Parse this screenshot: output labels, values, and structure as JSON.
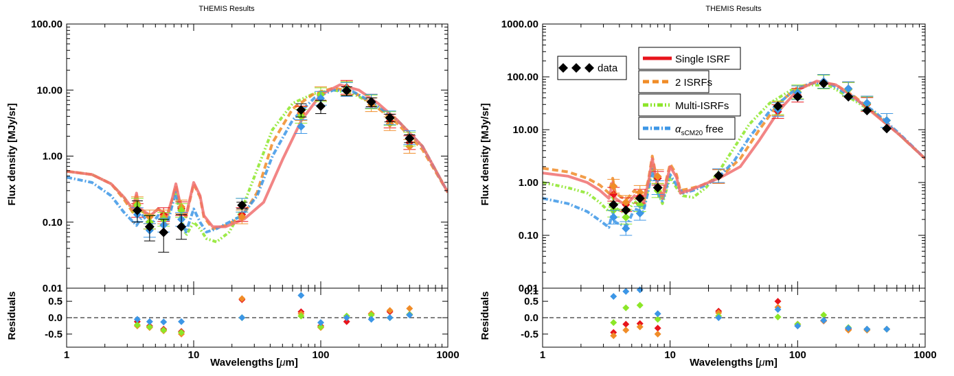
{
  "panels": [
    {
      "title": "THEMIS Results",
      "ylabel": "Flux density [MJy/sr]",
      "xlabel_prefix": "Wavelengths [",
      "xlabel_mu": "μ",
      "xlabel_suffix": "m]",
      "residual_label": "Residuals",
      "main_y_ticks": [
        "0.01",
        "0.10",
        "1.00",
        "10.00",
        "100.00"
      ],
      "x_ticks": [
        "1",
        "10",
        "100",
        "1000"
      ],
      "res_ticks": [
        "0.5",
        "0.0",
        "-0.5"
      ]
    },
    {
      "title": "THEMIS Results",
      "ylabel": "Flux density [MJy/sr]",
      "xlabel_prefix": "Wavelengths [",
      "xlabel_mu": "μ",
      "xlabel_suffix": "m]",
      "residual_label": "Residuals",
      "main_y_ticks": [
        "0.01",
        "0.10",
        "1.00",
        "10.00",
        "100.00",
        "1000.00"
      ],
      "x_ticks": [
        "1",
        "10",
        "100",
        "1000"
      ],
      "res_ticks": [
        "0.1",
        "0.5",
        "0.0",
        "-0.5"
      ],
      "legend": {
        "data": "data",
        "single": "Single ISRF",
        "two": "2 ISRFs",
        "multi": "Multi-ISRFs",
        "alpha_prefix": "α",
        "alpha_sub": "sCM20",
        "alpha_suffix": " free"
      }
    }
  ],
  "colors": {
    "single": "#e8141c",
    "single_line": "#f07070",
    "two": "#f08c28",
    "multi": "#8ce628",
    "alpha": "#3c96e6",
    "data": "#000000"
  },
  "chart_data": [
    {
      "type": "scatter",
      "title": "THEMIS Results",
      "xlabel": "Wavelengths [μm]",
      "ylabel": "Flux density [MJy/sr]",
      "xscale": "log",
      "yscale": "log",
      "xlim": [
        1,
        1000
      ],
      "ylim": [
        0.01,
        100
      ],
      "residual_ylim": [
        -0.9,
        0.9
      ],
      "data": {
        "name": "data",
        "x": [
          3.6,
          4.5,
          5.8,
          8.0,
          24,
          70,
          100,
          160,
          250,
          350,
          500
        ],
        "y": [
          0.15,
          0.085,
          0.07,
          0.085,
          0.18,
          5.0,
          5.7,
          9.8,
          6.6,
          3.8,
          1.85
        ],
        "err_lo": [
          0.1,
          0.052,
          0.035,
          0.055,
          0.16,
          3.9,
          4.4,
          8.2,
          5.6,
          3.3,
          1.6
        ],
        "err_hi": [
          0.21,
          0.125,
          0.11,
          0.13,
          0.2,
          6.2,
          7.0,
          11.2,
          7.6,
          4.3,
          2.1
        ]
      },
      "points": [
        {
          "name": "Single ISRF",
          "x": [
            3.6,
            4.5,
            5.8,
            8.0,
            24,
            70,
            100,
            160,
            250,
            350,
            500
          ],
          "y": [
            0.15,
            0.1,
            0.13,
            0.16,
            0.13,
            4.5,
            8.5,
            11.0,
            6.8,
            3.4,
            1.6
          ]
        },
        {
          "name": "2 ISRFs",
          "x": [
            3.6,
            4.5,
            5.8,
            8.0,
            24,
            70,
            100,
            160,
            250,
            350,
            500
          ],
          "y": [
            0.19,
            0.12,
            0.12,
            0.17,
            0.12,
            4.4,
            8.8,
            10.6,
            6.0,
            3.1,
            1.4
          ]
        },
        {
          "name": "Multi-ISRFs",
          "x": [
            3.6,
            4.5,
            5.8,
            8.0,
            24,
            70,
            100,
            160,
            250,
            350,
            500
          ],
          "y": [
            0.18,
            0.1,
            0.11,
            0.15,
            0.18,
            4.0,
            8.5,
            10.5,
            6.6,
            3.7,
            1.8
          ]
        },
        {
          "name": "αsCM20 free",
          "x": [
            3.6,
            4.5,
            5.8,
            8.0,
            24,
            70,
            100,
            160,
            250,
            350,
            500
          ],
          "y": [
            0.13,
            0.075,
            0.09,
            0.11,
            0.18,
            2.8,
            7.5,
            10.2,
            6.8,
            3.8,
            1.9
          ]
        }
      ],
      "residuals": [
        {
          "name": "Single ISRF",
          "x": [
            3.6,
            4.5,
            5.8,
            8.0,
            24,
            70,
            100,
            160,
            250,
            350,
            500
          ],
          "y": [
            -0.12,
            -0.25,
            -0.35,
            -0.42,
            0.55,
            0.18,
            -0.25,
            -0.12,
            0.12,
            0.18,
            0.1
          ]
        },
        {
          "name": "2 ISRFs",
          "x": [
            3.6,
            4.5,
            5.8,
            8.0,
            24,
            70,
            100,
            160,
            250,
            350,
            500
          ],
          "y": [
            -0.25,
            -0.3,
            -0.4,
            -0.5,
            0.58,
            0.12,
            -0.3,
            0.0,
            0.12,
            0.22,
            0.28
          ]
        },
        {
          "name": "Multi-ISRFs",
          "x": [
            3.6,
            4.5,
            5.8,
            8.0,
            24,
            70,
            100,
            160,
            250,
            350,
            500
          ],
          "y": [
            -0.22,
            -0.28,
            -0.38,
            -0.45,
            0.0,
            0.05,
            -0.28,
            0.05,
            0.08,
            0.0,
            0.1
          ]
        },
        {
          "name": "αsCM20 free",
          "x": [
            3.6,
            4.5,
            5.8,
            8.0,
            24,
            70,
            100,
            160,
            250,
            350,
            500
          ],
          "y": [
            -0.05,
            -0.12,
            -0.13,
            -0.12,
            0.0,
            0.68,
            -0.15,
            0.0,
            -0.05,
            0.0,
            0.08
          ]
        }
      ]
    },
    {
      "type": "scatter",
      "title": "THEMIS Results",
      "xlabel": "Wavelengths [μm]",
      "ylabel": "Flux density [MJy/sr]",
      "xscale": "log",
      "yscale": "log",
      "xlim": [
        1,
        1000
      ],
      "ylim": [
        0.01,
        1000
      ],
      "residual_ylim": [
        -0.9,
        0.9
      ],
      "legend_position": "top-left",
      "data": {
        "name": "data",
        "x": [
          3.6,
          4.5,
          5.8,
          8.0,
          24,
          70,
          100,
          160,
          250,
          350,
          500
        ],
        "y": [
          0.38,
          0.3,
          0.5,
          0.8,
          1.35,
          28,
          42,
          75,
          42,
          23,
          10.5
        ]
      },
      "points": [
        {
          "name": "Single ISRF",
          "x": [
            3.6,
            4.5,
            5.8,
            8.0,
            24,
            70,
            100,
            160,
            250,
            350,
            500
          ],
          "y": [
            0.6,
            0.38,
            0.55,
            1.2,
            1.3,
            22,
            45,
            82,
            58,
            30,
            15
          ]
        },
        {
          "name": "2 ISRFs",
          "x": [
            3.6,
            4.5,
            5.8,
            8.0,
            24,
            70,
            100,
            160,
            250,
            350,
            500
          ],
          "y": [
            0.85,
            0.42,
            0.65,
            1.3,
            1.3,
            25,
            50,
            82,
            60,
            32,
            15
          ]
        },
        {
          "name": "Multi-ISRFs",
          "x": [
            3.6,
            4.5,
            5.8,
            8.0,
            24,
            70,
            100,
            160,
            250,
            350,
            500
          ],
          "y": [
            0.3,
            0.22,
            0.38,
            0.7,
            1.35,
            26,
            52,
            80,
            58,
            31,
            15
          ]
        },
        {
          "name": "αsCM20 free",
          "x": [
            3.6,
            4.5,
            5.8,
            8.0,
            24,
            70,
            100,
            160,
            250,
            350,
            500
          ],
          "y": [
            0.22,
            0.135,
            0.26,
            0.8,
            1.35,
            24,
            50,
            82,
            60,
            32,
            15
          ]
        }
      ],
      "residuals": [
        {
          "name": "Single ISRF",
          "x": [
            3.6,
            4.5,
            5.8,
            8.0,
            24,
            70,
            100,
            160,
            250,
            350,
            500
          ],
          "y": [
            -0.45,
            -0.2,
            -0.18,
            -0.32,
            0.2,
            0.5,
            -0.2,
            -0.1,
            -0.35,
            -0.35,
            -0.35
          ]
        },
        {
          "name": "2 ISRFs",
          "x": [
            3.6,
            4.5,
            5.8,
            8.0,
            24,
            70,
            100,
            160,
            250,
            350,
            500
          ],
          "y": [
            -0.55,
            -0.38,
            -0.28,
            -0.5,
            0.15,
            0.32,
            -0.25,
            -0.1,
            -0.38,
            -0.38,
            -0.35
          ]
        },
        {
          "name": "Multi-ISRFs",
          "x": [
            3.6,
            4.5,
            5.8,
            8.0,
            24,
            70,
            100,
            160,
            250,
            350,
            500
          ],
          "y": [
            -0.15,
            0.3,
            0.38,
            -0.05,
            0.05,
            0.02,
            -0.2,
            0.08,
            -0.3,
            -0.35,
            -0.35
          ]
        },
        {
          "name": "αsCM20 free",
          "x": [
            3.6,
            4.5,
            5.8,
            8.0,
            24,
            70,
            100,
            160,
            250,
            350,
            500
          ],
          "y": [
            0.65,
            0.8,
            0.85,
            0.12,
            0.0,
            0.25,
            -0.25,
            -0.08,
            -0.32,
            -0.35,
            -0.35
          ]
        }
      ]
    }
  ]
}
